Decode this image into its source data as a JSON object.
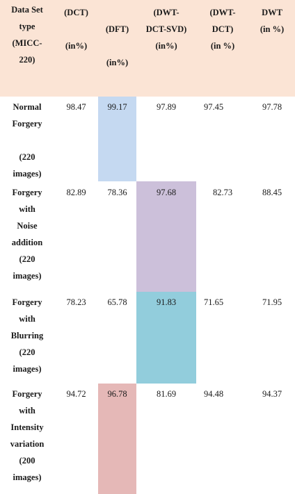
{
  "headers": {
    "col0": [
      "Data Set",
      "type",
      "(MICC-",
      "220)"
    ],
    "col1": [
      "(DCT)",
      "",
      "(in%)"
    ],
    "col2": [
      "(DFT)",
      "",
      "(in%)"
    ],
    "col3": [
      "(DWT-",
      "DCT-SVD)",
      "(in%)"
    ],
    "col4": [
      "(DWT-",
      "DCT)",
      "(in %)"
    ],
    "col5": [
      "DWT",
      "(in %)"
    ]
  },
  "rows": [
    {
      "label": [
        "Normal",
        "Forgery",
        "",
        "(220",
        "images)"
      ],
      "values": [
        "98.47",
        "99.17",
        "97.89",
        "97.45",
        "97.78"
      ]
    },
    {
      "label": [
        "Forgery",
        "with",
        "Noise",
        "addition",
        "(220",
        "images)"
      ],
      "values": [
        "82.89",
        "78.36",
        "97.68",
        "82.73",
        "88.45"
      ]
    },
    {
      "label": [
        "Forgery",
        "with",
        "Blurring",
        "(220",
        "images)"
      ],
      "values": [
        "78.23",
        "65.78",
        "91.83",
        "71.65",
        "71.95"
      ]
    },
    {
      "label": [
        "Forgery",
        "with",
        "Intensity",
        "variation",
        "(200",
        "images)"
      ],
      "values": [
        "94.72",
        "96.78",
        "81.69",
        "94.48",
        "94.37"
      ]
    }
  ],
  "colors": {
    "header_bg": "#fbe4d5",
    "row1_highlight": "#c5d9f1",
    "row2_highlight": "#ccc0da",
    "row3_highlight": "#92cddc",
    "row4_highlight": "#e5b8b7"
  }
}
